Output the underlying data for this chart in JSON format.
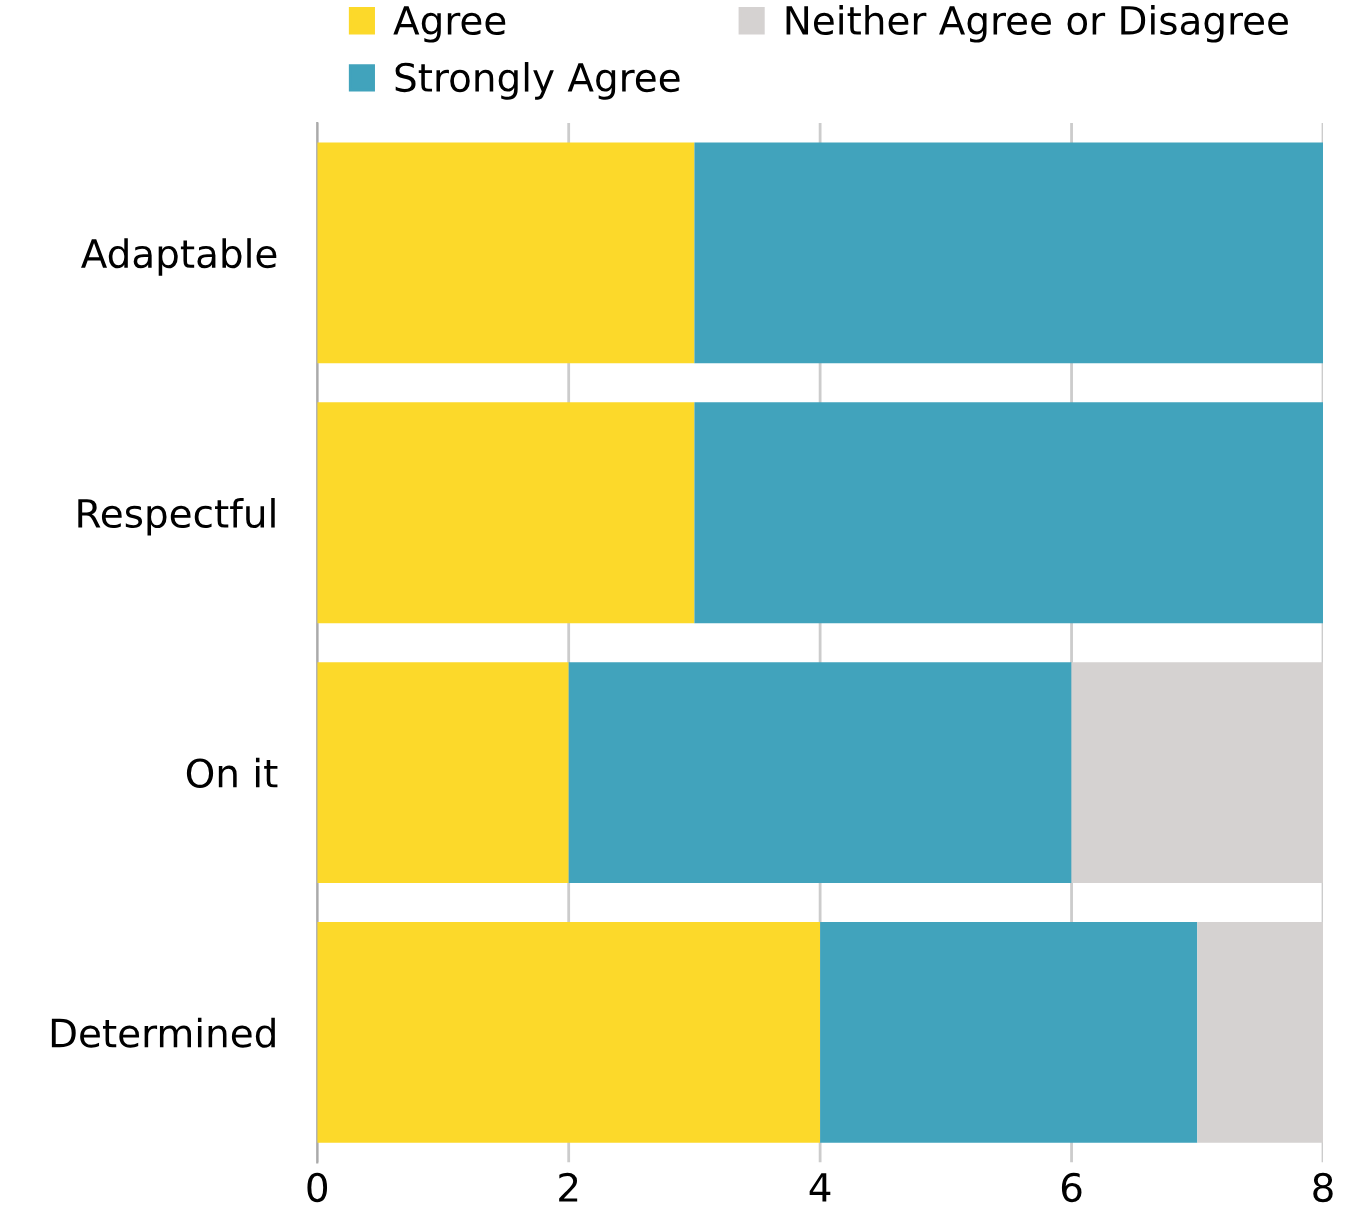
{
  "chart_data": {
    "type": "bar",
    "orientation": "horizontal",
    "stacked": true,
    "categories": [
      "Adaptable",
      "Respectful",
      "On it",
      "Determined"
    ],
    "series": [
      {
        "name": "Agree",
        "color": "#fcd92a",
        "values": [
          3,
          3,
          2,
          4
        ]
      },
      {
        "name": "Strongly Agree",
        "color": "#41a3bc",
        "values": [
          5,
          5,
          4,
          3
        ]
      },
      {
        "name": "Neither Agree or Disagree",
        "color": "#d5d2d1",
        "values": [
          null,
          null,
          2,
          1
        ]
      }
    ],
    "xlim": [
      0,
      8
    ],
    "xticks": [
      0,
      2,
      4,
      6,
      8
    ],
    "grid": "x",
    "legend": "top"
  }
}
